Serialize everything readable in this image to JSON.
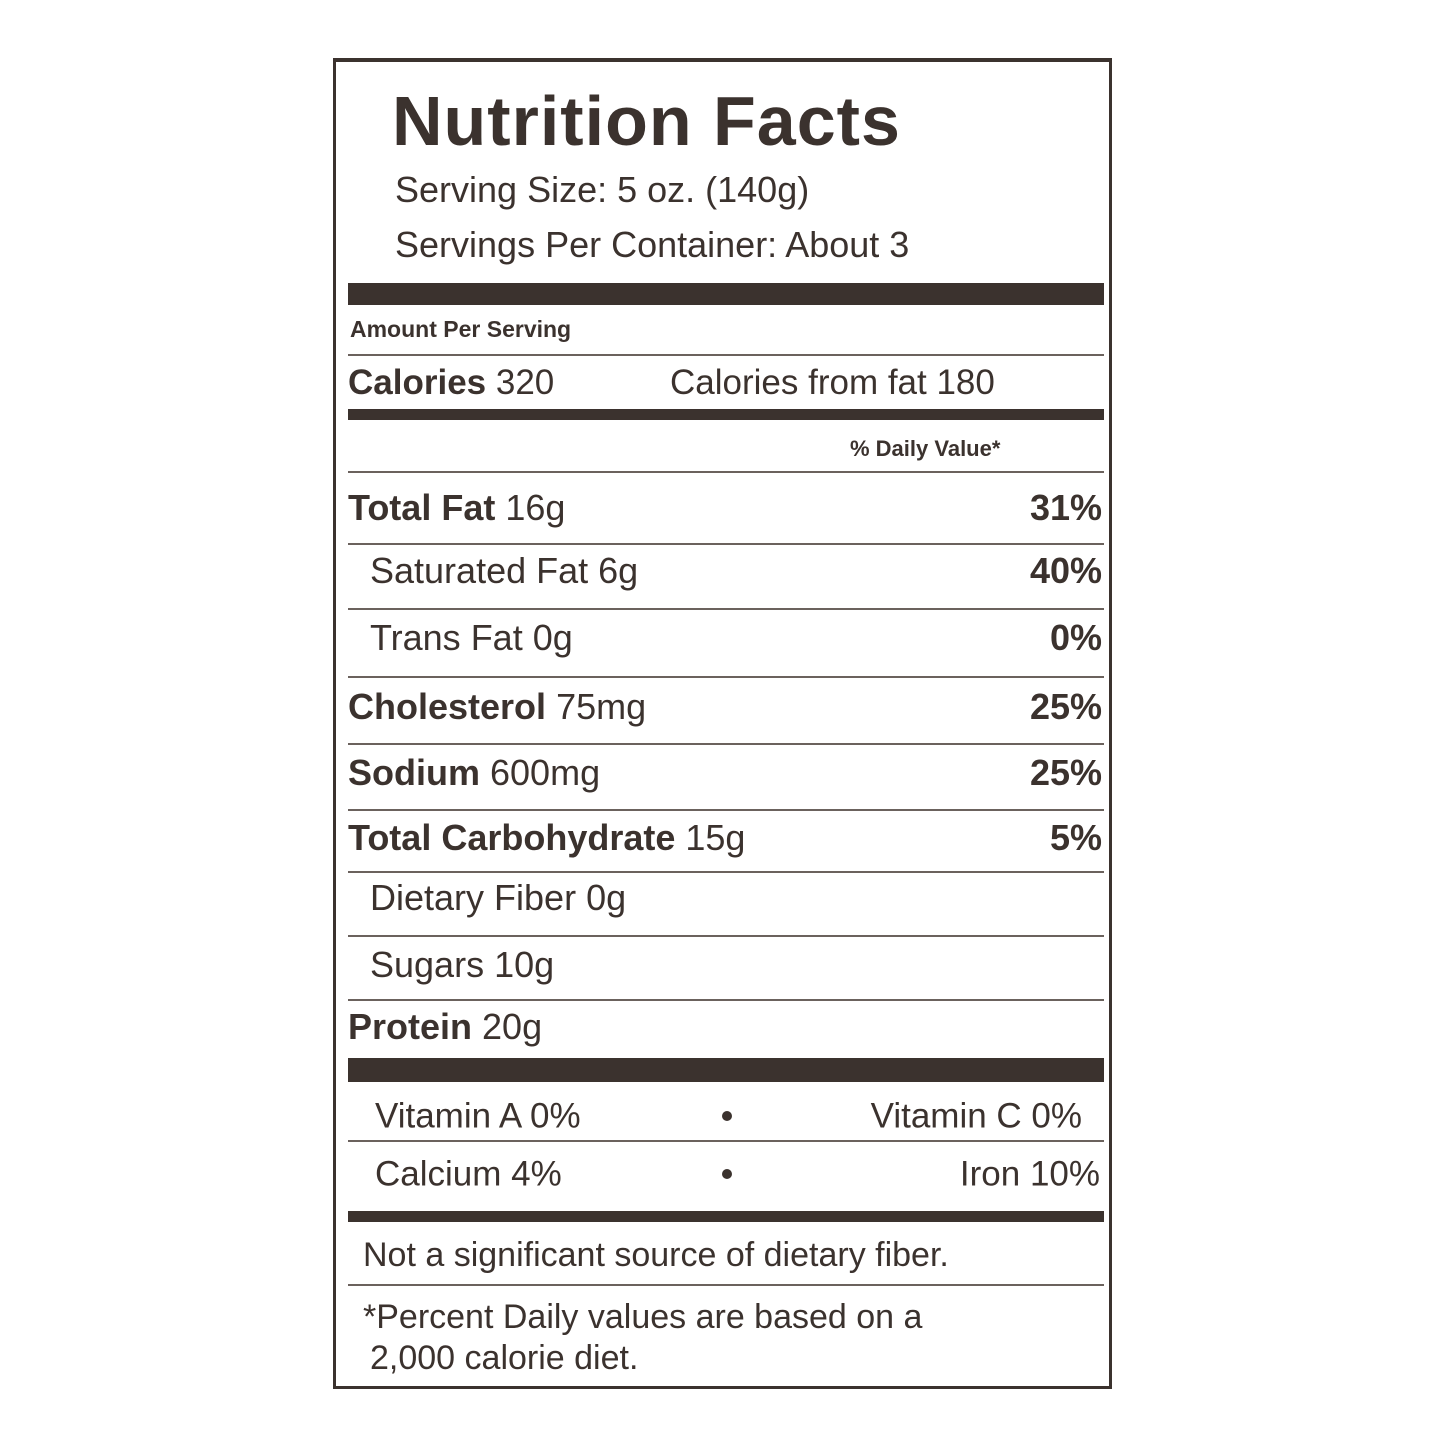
{
  "title": "Nutrition Facts",
  "serving_size": "Serving Size:  5 oz. (140g)",
  "servings_per_container": "Servings Per Container: About 3",
  "amount_per_serving": "Amount Per Serving",
  "calories": {
    "label": "Calories",
    "value": "320"
  },
  "calories_from_fat": "Calories from fat 180",
  "daily_value_header": "% Daily Value*",
  "nutrients": [
    {
      "label": "Total Fat",
      "amount": "16g",
      "dv": "31%",
      "sub": false
    },
    {
      "label": "Saturated Fat",
      "amount": "6g",
      "dv": "40%",
      "sub": true
    },
    {
      "label": "Trans Fat",
      "amount": "0g",
      "dv": "0%",
      "sub": true
    },
    {
      "label": "Cholesterol",
      "amount": "75mg",
      "dv": "25%",
      "sub": false
    },
    {
      "label": "Sodium",
      "amount": "600mg",
      "dv": "25%",
      "sub": false
    },
    {
      "label": "Total Carbohydrate",
      "amount": "15g",
      "dv": "5%",
      "sub": false
    },
    {
      "label": "Dietary Fiber",
      "amount": "0g",
      "dv": null,
      "sub": true
    },
    {
      "label": "Sugars",
      "amount": "10g",
      "dv": null,
      "sub": true
    },
    {
      "label": "Protein",
      "amount": "20g",
      "dv": null,
      "sub": false
    }
  ],
  "vitamins": [
    [
      "Vitamin A 0%",
      "Vitamin C 0%"
    ],
    [
      "Calcium 4%",
      "Iron 10%"
    ]
  ],
  "note": "Not a significant source of dietary fiber.",
  "footnote": [
    "*Percent Daily values are based on a",
    "2,000 calorie diet."
  ]
}
